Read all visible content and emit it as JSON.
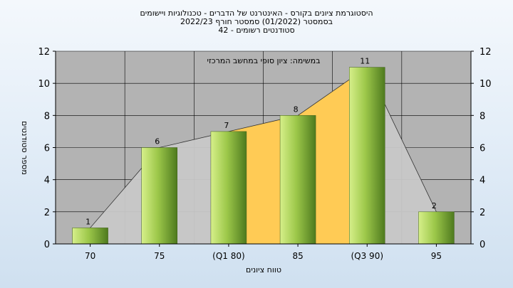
{
  "chart_data": {
    "type": "bar",
    "title_lines": [
      "היסטוגרמת ציונים בקורס - האינטרנט של הדברים - טכנולוגיות ויישומים",
      "בסמסטר  (01/2022)  סמסטר חורף 2022/23",
      "סטודנטים רשומים - 42"
    ],
    "subtitle": "במשימה: ציון סופי במחשב המרכזי",
    "xlabel": "טווח ציונים",
    "ylabel": "מספר סטודנטים",
    "categories": [
      "70",
      "75",
      "(Q1 80)",
      "85",
      "(Q3 90)",
      "95"
    ],
    "values": [
      1,
      6,
      7,
      8,
      11,
      2
    ],
    "data_labels": [
      "1",
      "6",
      "7",
      "8",
      "11",
      "2"
    ],
    "ylim": [
      0,
      12
    ],
    "yticks": [
      0,
      2,
      4,
      6,
      8,
      10,
      12
    ],
    "ytick_labels_left": [
      "0",
      "2",
      "4",
      "6",
      "8",
      "10",
      "12"
    ],
    "ytick_labels_right": [
      "0",
      "2",
      "4",
      "6",
      "8",
      "10",
      "12"
    ],
    "grid": true,
    "iqr_band": {
      "from_category": "(Q1 80)",
      "to_category": "(Q3 90)"
    },
    "colors": {
      "plot_background": "#b3b3b3",
      "grid": "#000000",
      "bar_light": "#d6ef8a",
      "bar_mid": "#9dc84a",
      "bar_dark": "#4e7a1e",
      "area": "#c8c8c8",
      "iqr_area": "#ffcb55",
      "text": "#000000"
    }
  }
}
